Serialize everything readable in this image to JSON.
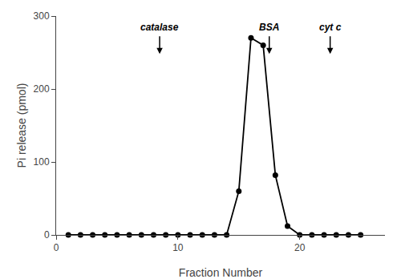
{
  "chart_data": {
    "type": "line",
    "x": [
      1,
      2,
      3,
      4,
      5,
      6,
      7,
      8,
      9,
      10,
      11,
      12,
      13,
      14,
      15,
      16,
      17,
      18,
      19,
      20,
      21,
      22,
      23,
      24,
      25
    ],
    "values": [
      0,
      0,
      0,
      0,
      0,
      0,
      0,
      0,
      0,
      0,
      0,
      0,
      0,
      0,
      60,
      270,
      260,
      82,
      12,
      0,
      0,
      0,
      0,
      0,
      0
    ],
    "color": "#000000",
    "marker": "circle",
    "xlim": [
      0,
      27
    ],
    "ylim": [
      0,
      300
    ],
    "xticks": [
      0,
      10,
      20
    ],
    "yticks": [
      0,
      100,
      200,
      300
    ],
    "xlabel": "Fraction Number",
    "ylabel": "Pi release (pmol)",
    "grid": false,
    "annotations": [
      {
        "text": "catalase",
        "x": 8.5,
        "y": 295,
        "arrow_tail": 274,
        "arrow_head": 248
      },
      {
        "text": "BSA",
        "x": 17.5,
        "y": 295,
        "arrow_tail": 274,
        "arrow_head": 248
      },
      {
        "text": "cyt c",
        "x": 22.5,
        "y": 295,
        "arrow_tail": 274,
        "arrow_head": 248
      }
    ]
  }
}
